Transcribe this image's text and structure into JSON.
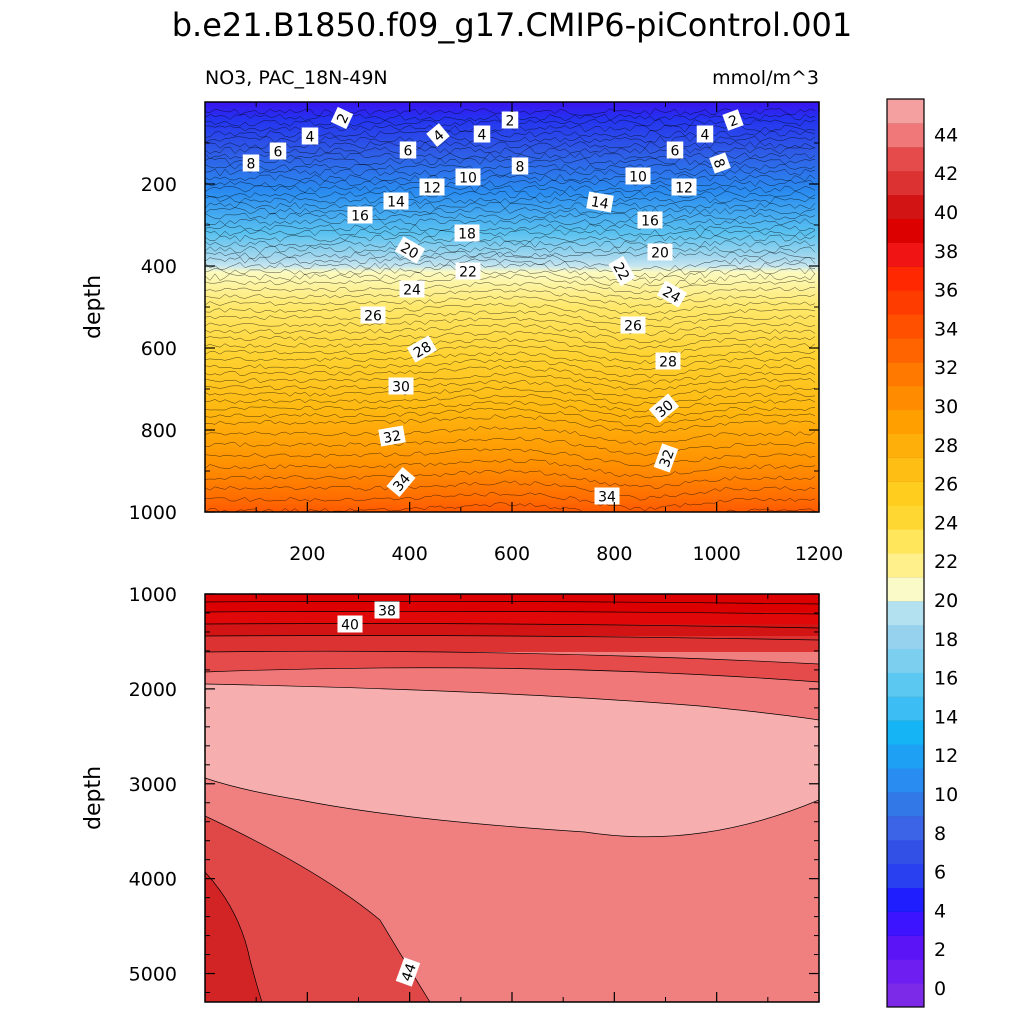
{
  "chart_data": {
    "type": "heatmap",
    "title": "b.e21.B1850.f09_g17.CMIP6-piControl.001",
    "variable_label": "NO3, PAC_18N-49N",
    "units_label": "mmol/m^3",
    "x_axis": {
      "range": [
        0,
        1200
      ],
      "ticks": [
        200,
        400,
        600,
        800,
        1000,
        1200
      ],
      "label": ""
    },
    "colorbar": {
      "levels": [
        0,
        2,
        4,
        6,
        8,
        10,
        12,
        14,
        16,
        18,
        20,
        22,
        24,
        26,
        28,
        30,
        32,
        34,
        36,
        38,
        40,
        42,
        44
      ],
      "colors": [
        "#7d2ae8",
        "#6e1ef0",
        "#5a14f5",
        "#3c14ff",
        "#1e1eff",
        "#2840f0",
        "#3250e6",
        "#3c64e6",
        "#3278e6",
        "#288cf0",
        "#1ea0f5",
        "#14b4f5",
        "#3cbef5",
        "#5ac8f0",
        "#7dcff0",
        "#96d2ee",
        "#b4e1f0",
        "#fafac8",
        "#fff08c",
        "#ffe65a",
        "#ffd732",
        "#ffcd1e",
        "#ffbe14",
        "#ffaf0a",
        "#ffa000",
        "#ff8c00",
        "#ff7800",
        "#ff6400",
        "#ff5000",
        "#ff3c00",
        "#ff2800",
        "#f01414",
        "#dc0000",
        "#d21414",
        "#dc3232",
        "#e64b4b",
        "#f07878",
        "#f5a0a0"
      ],
      "tick_labels": [
        "0",
        "2",
        "4",
        "6",
        "8",
        "10",
        "12",
        "14",
        "16",
        "18",
        "20",
        "22",
        "24",
        "26",
        "28",
        "30",
        "32",
        "34",
        "36",
        "38",
        "40",
        "42",
        "44"
      ]
    },
    "panels": [
      {
        "name": "upper",
        "ylabel": "depth",
        "y_range": [
          0,
          1000
        ],
        "y_ticks": [
          "200",
          "400",
          "600",
          "800",
          "1000"
        ],
        "contour_labels": [
          "2",
          "4",
          "6",
          "8",
          "10",
          "12",
          "14",
          "16",
          "18",
          "20",
          "22",
          "24",
          "26",
          "28",
          "30",
          "32",
          "34"
        ]
      },
      {
        "name": "lower",
        "ylabel": "depth",
        "y_range": [
          1000,
          5300
        ],
        "y_ticks": [
          "1000",
          "2000",
          "3000",
          "4000",
          "5000"
        ],
        "contour_labels": [
          "38",
          "40",
          "44"
        ]
      }
    ]
  }
}
